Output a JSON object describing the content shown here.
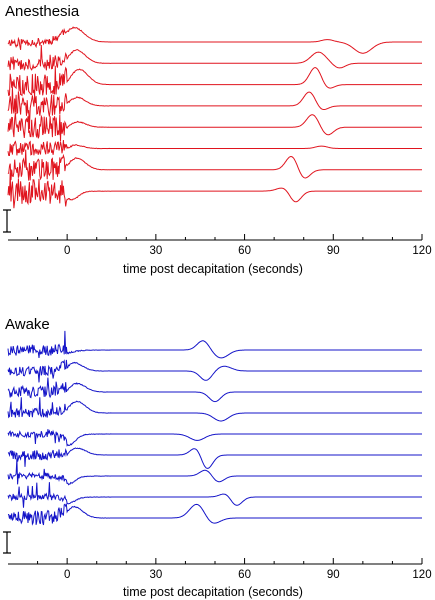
{
  "chart_data": [
    {
      "type": "line",
      "title": "Anesthesia",
      "xlabel": "time post decapitation (seconds)",
      "ylabel": "",
      "xlim": [
        -20,
        120
      ],
      "xticks": [
        0,
        30,
        60,
        90,
        120
      ],
      "xtick_labels": [
        "0",
        "30",
        "60",
        "90",
        "120"
      ],
      "grid": false,
      "legend": "none",
      "scale_bar": true,
      "color": "#e0141e",
      "series": [
        {
          "pre_noise": 0.25,
          "events": [
            {
              "t": 2,
              "amp": 1.0,
              "w": 3.5
            },
            {
              "t": 88,
              "amp": 0.15,
              "w": 2
            },
            {
              "t": 100,
              "amp": -0.7,
              "w": 3
            }
          ]
        },
        {
          "pre_noise": 0.45,
          "events": [
            {
              "t": 3,
              "amp": 0.9,
              "w": 3
            },
            {
              "t": 85,
              "amp": 0.7,
              "w": 2.5
            },
            {
              "t": 92,
              "amp": -0.3,
              "w": 2
            }
          ]
        },
        {
          "pre_noise": 0.7,
          "events": [
            {
              "t": 4,
              "amp": 1.0,
              "w": 3
            },
            {
              "t": 84,
              "amp": 1.1,
              "w": 2
            },
            {
              "t": 88,
              "amp": -0.3,
              "w": 2
            }
          ]
        },
        {
          "pre_noise": 0.7,
          "events": [
            {
              "t": 3,
              "amp": 0.6,
              "w": 3
            },
            {
              "t": 82,
              "amp": 0.9,
              "w": 2
            },
            {
              "t": 86,
              "amp": -0.3,
              "w": 2
            }
          ]
        },
        {
          "pre_noise": 0.7,
          "events": [
            {
              "t": 3,
              "amp": 0.4,
              "w": 3
            },
            {
              "t": 83,
              "amp": 0.8,
              "w": 2
            },
            {
              "t": 88,
              "amp": -0.5,
              "w": 2
            }
          ]
        },
        {
          "pre_noise": 0.45,
          "events": [
            {
              "t": 2,
              "amp": 0.3,
              "w": 3
            },
            {
              "t": 86,
              "amp": 0.15,
              "w": 2
            }
          ]
        },
        {
          "pre_noise": 0.7,
          "events": [
            {
              "t": 3,
              "amp": 0.8,
              "w": 3
            },
            {
              "t": 76,
              "amp": 0.9,
              "w": 2
            },
            {
              "t": 80,
              "amp": -0.6,
              "w": 2
            }
          ]
        },
        {
          "pre_noise": 0.8,
          "events": [
            {
              "t": 2,
              "amp": -0.4,
              "w": 2
            },
            {
              "t": 74,
              "amp": 0.3,
              "w": 2.5
            },
            {
              "t": 77,
              "amp": -0.8,
              "w": 2
            }
          ]
        }
      ]
    },
    {
      "type": "line",
      "title": "Awake",
      "xlabel": "time post decapitation (seconds)",
      "ylabel": "",
      "xlim": [
        -20,
        120
      ],
      "xticks": [
        0,
        30,
        60,
        90,
        120
      ],
      "xtick_labels": [
        "0",
        "30",
        "60",
        "90",
        "120"
      ],
      "grid": false,
      "legend": "none",
      "scale_bar": true,
      "color": "#1414c8",
      "series": [
        {
          "pre_noise": 0.35,
          "events": [
            {
              "t": 46,
              "amp": 0.6,
              "w": 2
            },
            {
              "t": 52,
              "amp": -0.5,
              "w": 2.5
            }
          ]
        },
        {
          "pre_noise": 0.3,
          "events": [
            {
              "t": 2,
              "amp": 0.6,
              "w": 3
            },
            {
              "t": 47,
              "amp": -0.6,
              "w": 2
            },
            {
              "t": 53,
              "amp": 0.3,
              "w": 2.5
            }
          ]
        },
        {
          "pre_noise": 0.35,
          "events": [
            {
              "t": 3,
              "amp": 0.6,
              "w": 3
            },
            {
              "t": 50,
              "amp": -0.6,
              "w": 2
            }
          ]
        },
        {
          "pre_noise": 0.3,
          "events": [
            {
              "t": 3,
              "amp": 0.8,
              "w": 3
            },
            {
              "t": 52,
              "amp": -0.5,
              "w": 2.5
            }
          ]
        },
        {
          "pre_noise": 0.2,
          "events": [
            {
              "t": 1,
              "amp": -0.5,
              "w": 2
            },
            {
              "t": 44,
              "amp": -0.4,
              "w": 2.5
            }
          ]
        },
        {
          "pre_noise": 0.3,
          "events": [
            {
              "t": 3,
              "amp": 0.5,
              "w": 3
            },
            {
              "t": 44,
              "amp": 0.6,
              "w": 2
            },
            {
              "t": 47,
              "amp": -1.0,
              "w": 2
            }
          ]
        },
        {
          "pre_noise": 0.2,
          "events": [
            {
              "t": 1,
              "amp": -0.3,
              "w": 2
            },
            {
              "t": 47,
              "amp": 0.4,
              "w": 2
            },
            {
              "t": 51,
              "amp": -0.4,
              "w": 2
            }
          ]
        },
        {
          "pre_noise": 0.2,
          "events": [
            {
              "t": 1,
              "amp": -0.2,
              "w": 2
            },
            {
              "t": 54,
              "amp": 0.3,
              "w": 2
            },
            {
              "t": 57,
              "amp": -0.6,
              "w": 2
            }
          ]
        },
        {
          "pre_noise": 0.45,
          "events": [
            {
              "t": 2,
              "amp": 0.8,
              "w": 3
            },
            {
              "t": 44,
              "amp": 0.9,
              "w": 2.5
            },
            {
              "t": 49,
              "amp": -0.4,
              "w": 2.5
            }
          ]
        }
      ]
    }
  ]
}
